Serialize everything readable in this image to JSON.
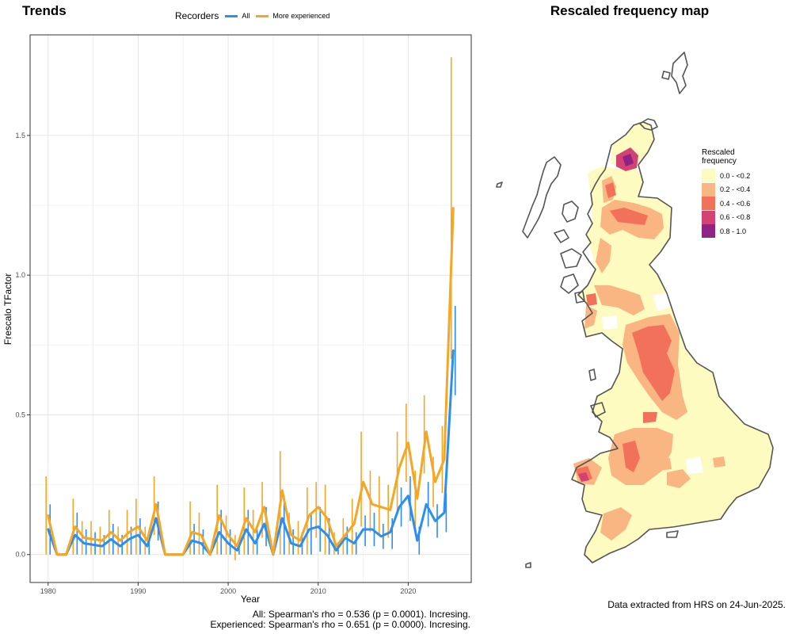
{
  "trends_title": "Trends",
  "map_title": "Rescaled frequency map",
  "legend": {
    "title": "Recorders",
    "items": [
      {
        "label": "All",
        "color": "#2b8ef0"
      },
      {
        "label": "More experienced",
        "color": "#f5a623"
      }
    ]
  },
  "stats": {
    "all": "All: Spearman's rho = 0.536 (p = 0.0001). Incresing.",
    "experienced": "Experienced: Spearman's rho = 0.651 (p = 0.0000). Incresing."
  },
  "data_note": "Data extracted from HRS on 24-Jun-2025.",
  "map_legend": {
    "title_line1": "Rescaled",
    "title_line2": "frequency",
    "classes": [
      {
        "label": "0.0 - <0.2",
        "color": "#fdfbc0"
      },
      {
        "label": "0.2 - <0.4",
        "color": "#f9b582"
      },
      {
        "label": "0.4 - <0.6",
        "color": "#f2715b"
      },
      {
        "label": "0.6 - <0.8",
        "color": "#d24373"
      },
      {
        "label": "0.8 - 1.0",
        "color": "#8e2385"
      }
    ]
  },
  "chart_data": {
    "type": "line",
    "title": "Trends",
    "xlabel": "Year",
    "ylabel": "Frescalo TFactor",
    "xlim": [
      1978,
      2027
    ],
    "ylim": [
      -0.1,
      1.86
    ],
    "x_ticks": [
      1980,
      1990,
      2000,
      2010,
      2020
    ],
    "y_ticks": [
      0.0,
      0.5,
      1.0,
      1.5
    ],
    "y_tick_labels": [
      "0.0",
      "0.5",
      "1.0",
      "1.5"
    ],
    "grid": true,
    "legend_position": "top",
    "series": [
      {
        "name": "All",
        "color": "#2b8ef0",
        "points": [
          [
            1980,
            0.09,
            0.0,
            0.18
          ],
          [
            1981,
            0.0,
            0.0,
            0.0
          ],
          [
            1982,
            0.0,
            0.0,
            0.0
          ],
          [
            1983,
            0.07,
            0.0,
            0.15
          ],
          [
            1984,
            0.04,
            0.0,
            0.09
          ],
          [
            1985,
            0.035,
            0.0,
            0.08
          ],
          [
            1986,
            0.03,
            0.0,
            0.07
          ],
          [
            1987,
            0.055,
            0.0,
            0.11
          ],
          [
            1988,
            0.03,
            0.0,
            0.07
          ],
          [
            1989,
            0.055,
            0.0,
            0.1
          ],
          [
            1990,
            0.07,
            0.0,
            0.13
          ],
          [
            1991,
            0.03,
            0.0,
            0.06
          ],
          [
            1992,
            0.13,
            0.05,
            0.19
          ],
          [
            1993,
            0.0,
            0.0,
            0.0
          ],
          [
            1994,
            0.0,
            0.0,
            0.0
          ],
          [
            1995,
            0.0,
            0.0,
            0.0
          ],
          [
            1996,
            0.05,
            0.0,
            0.11
          ],
          [
            1997,
            0.04,
            0.0,
            0.09
          ],
          [
            1998,
            0.0,
            0.0,
            0.0
          ],
          [
            1999,
            0.08,
            0.0,
            0.16
          ],
          [
            2000,
            0.04,
            0.0,
            0.09
          ],
          [
            2001,
            0.015,
            0.0,
            0.04
          ],
          [
            2002,
            0.09,
            0.0,
            0.16
          ],
          [
            2003,
            0.04,
            0.0,
            0.09
          ],
          [
            2004,
            0.11,
            0.03,
            0.17
          ],
          [
            2005,
            0.0,
            0.0,
            0.0
          ],
          [
            2006,
            0.13,
            0.0,
            0.21
          ],
          [
            2007,
            0.04,
            0.0,
            0.09
          ],
          [
            2008,
            0.03,
            0.0,
            0.08
          ],
          [
            2009,
            0.09,
            0.0,
            0.15
          ],
          [
            2010,
            0.1,
            0.01,
            0.17
          ],
          [
            2011,
            0.07,
            0.0,
            0.13
          ],
          [
            2012,
            0.015,
            0.0,
            0.04
          ],
          [
            2013,
            0.06,
            0.0,
            0.1
          ],
          [
            2014,
            0.04,
            0.0,
            0.08
          ],
          [
            2015,
            0.09,
            0.03,
            0.14
          ],
          [
            2016,
            0.09,
            0.03,
            0.15
          ],
          [
            2017,
            0.065,
            0.02,
            0.11
          ],
          [
            2018,
            0.08,
            0.02,
            0.13
          ],
          [
            2019,
            0.17,
            0.1,
            0.24
          ],
          [
            2020,
            0.21,
            0.12,
            0.28
          ],
          [
            2021,
            0.05,
            0.0,
            0.1
          ],
          [
            2022,
            0.18,
            0.1,
            0.26
          ],
          [
            2023,
            0.12,
            0.06,
            0.18
          ],
          [
            2024,
            0.15,
            0.08,
            0.22
          ],
          [
            2025,
            0.73,
            0.57,
            0.89
          ]
        ]
      },
      {
        "name": "More experienced",
        "color": "#f5a623",
        "points": [
          [
            1980,
            0.14,
            0.0,
            0.28
          ],
          [
            1981,
            0.0,
            0.0,
            0.0
          ],
          [
            1982,
            0.0,
            0.0,
            0.0
          ],
          [
            1983,
            0.1,
            0.0,
            0.2
          ],
          [
            1984,
            0.06,
            0.0,
            0.12
          ],
          [
            1985,
            0.055,
            0.0,
            0.12
          ],
          [
            1986,
            0.05,
            0.0,
            0.1
          ],
          [
            1987,
            0.08,
            0.0,
            0.16
          ],
          [
            1988,
            0.05,
            0.0,
            0.1
          ],
          [
            1989,
            0.08,
            0.0,
            0.16
          ],
          [
            1990,
            0.1,
            0.0,
            0.2
          ],
          [
            1991,
            0.05,
            0.0,
            0.1
          ],
          [
            1992,
            0.18,
            0.07,
            0.28
          ],
          [
            1993,
            0.0,
            0.0,
            0.0
          ],
          [
            1994,
            0.0,
            0.0,
            0.0
          ],
          [
            1995,
            0.0,
            0.0,
            0.0
          ],
          [
            1996,
            0.08,
            0.0,
            0.19
          ],
          [
            1997,
            0.07,
            0.0,
            0.15
          ],
          [
            1998,
            0.0,
            0.0,
            0.0
          ],
          [
            1999,
            0.14,
            0.0,
            0.25
          ],
          [
            2000,
            0.07,
            0.0,
            0.14
          ],
          [
            2001,
            0.03,
            -0.02,
            0.07
          ],
          [
            2002,
            0.13,
            0.0,
            0.24
          ],
          [
            2003,
            0.08,
            0.0,
            0.16
          ],
          [
            2004,
            0.17,
            0.06,
            0.26
          ],
          [
            2005,
            0.0,
            0.0,
            0.0
          ],
          [
            2006,
            0.23,
            0.0,
            0.37
          ],
          [
            2007,
            0.07,
            0.0,
            0.15
          ],
          [
            2008,
            0.05,
            0.0,
            0.12
          ],
          [
            2009,
            0.14,
            0.0,
            0.24
          ],
          [
            2010,
            0.17,
            0.06,
            0.26
          ],
          [
            2011,
            0.13,
            0.0,
            0.25
          ],
          [
            2012,
            0.03,
            0.0,
            0.08
          ],
          [
            2013,
            0.07,
            0.0,
            0.13
          ],
          [
            2014,
            0.11,
            0.0,
            0.2
          ],
          [
            2015,
            0.26,
            0.1,
            0.44
          ],
          [
            2016,
            0.18,
            0.08,
            0.3
          ],
          [
            2017,
            0.17,
            0.07,
            0.28
          ],
          [
            2018,
            0.16,
            0.06,
            0.25
          ],
          [
            2019,
            0.31,
            0.15,
            0.44
          ],
          [
            2020,
            0.4,
            0.26,
            0.54
          ],
          [
            2021,
            0.2,
            0.1,
            0.3
          ],
          [
            2022,
            0.44,
            0.29,
            0.57
          ],
          [
            2023,
            0.26,
            0.17,
            0.35
          ],
          [
            2024,
            0.34,
            0.22,
            0.46
          ],
          [
            2025,
            1.24,
            0.7,
            1.78
          ]
        ]
      }
    ]
  }
}
